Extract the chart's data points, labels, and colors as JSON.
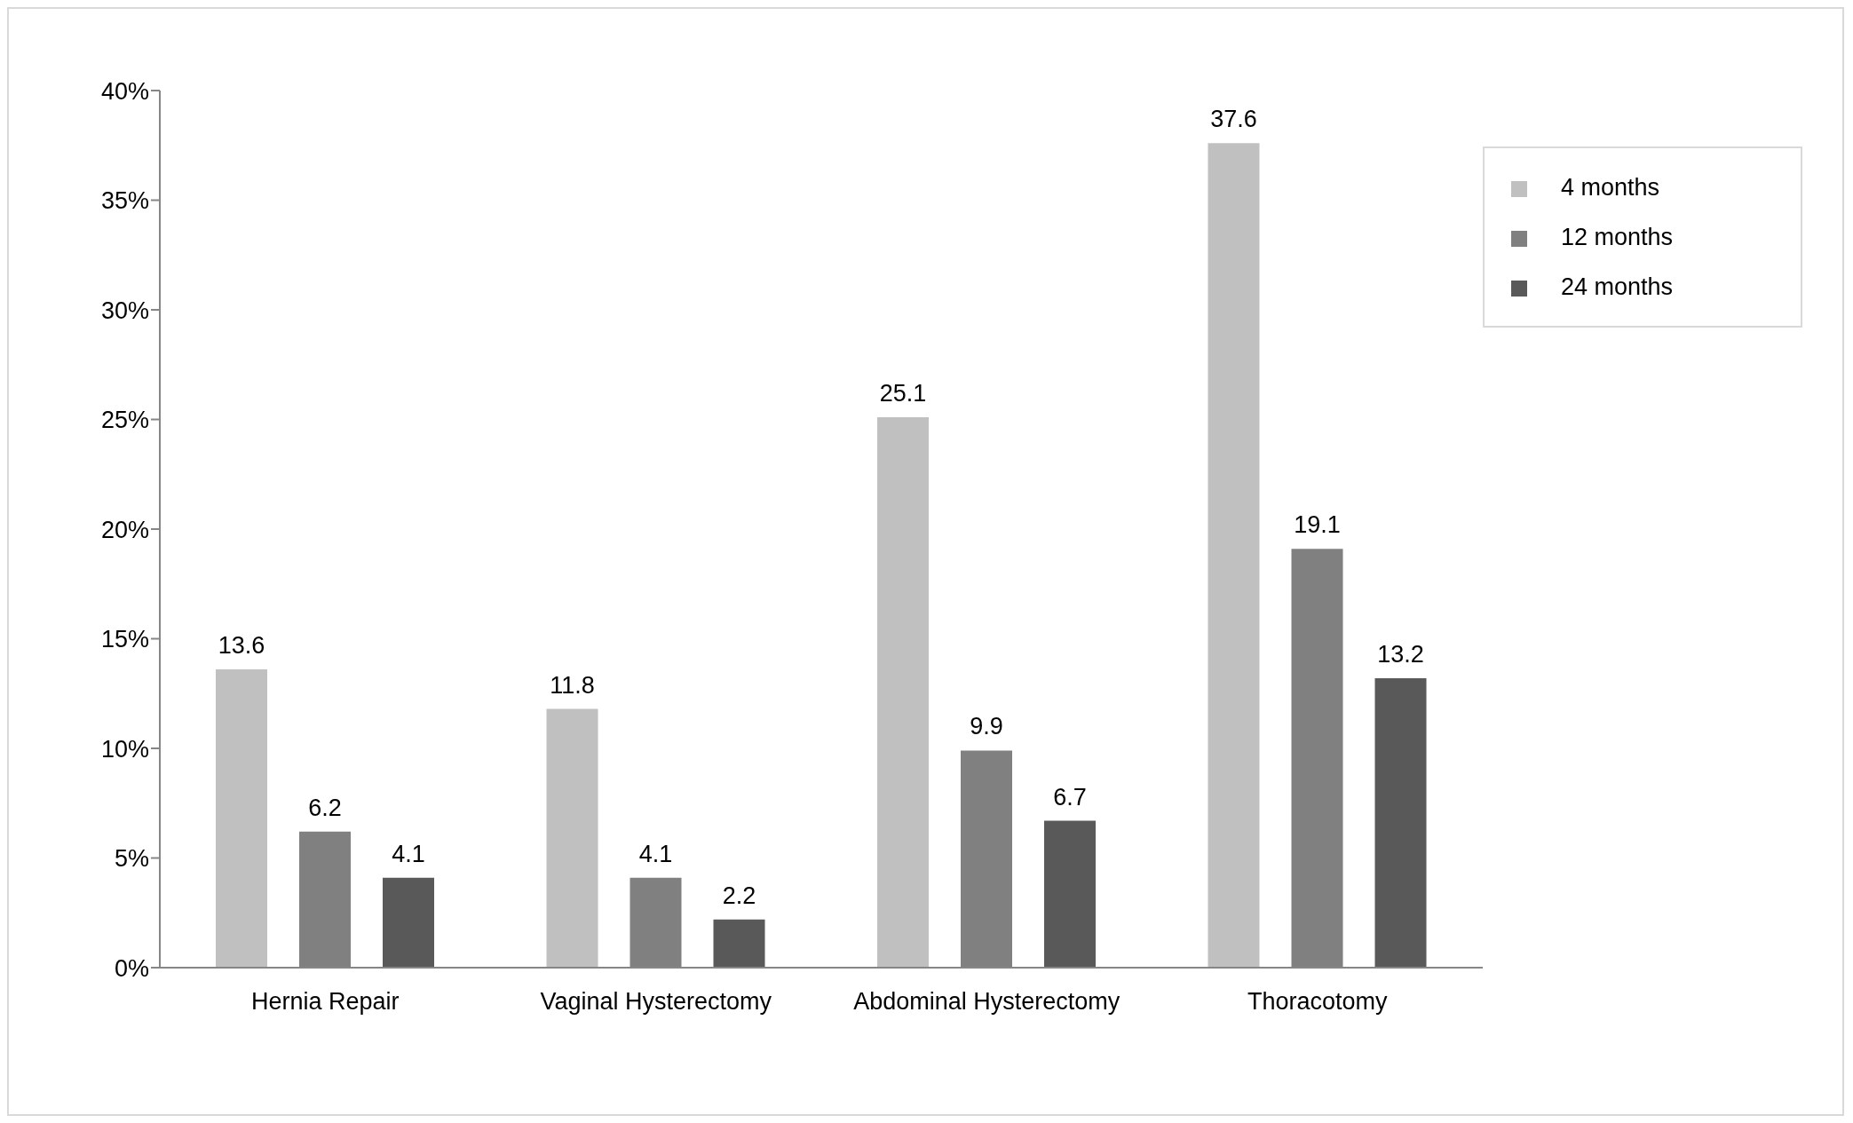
{
  "chart_data": {
    "type": "bar",
    "categories": [
      "Hernia Repair",
      "Vaginal Hysterectomy",
      "Abdominal Hysterectomy",
      "Thoracotomy"
    ],
    "series": [
      {
        "name": "4 months",
        "color": "#c0c0c0",
        "values": [
          13.6,
          11.8,
          25.1,
          37.6
        ]
      },
      {
        "name": "12 months",
        "color": "#808080",
        "values": [
          6.2,
          4.1,
          9.9,
          19.1
        ]
      },
      {
        "name": "24 months",
        "color": "#595959",
        "values": [
          4.1,
          2.2,
          6.7,
          13.2
        ]
      }
    ],
    "ylim": [
      0,
      40
    ],
    "yticks": [
      {
        "value": 0,
        "label": "0%"
      },
      {
        "value": 5,
        "label": "5%"
      },
      {
        "value": 10,
        "label": "10%"
      },
      {
        "value": 15,
        "label": "15%"
      },
      {
        "value": 20,
        "label": "20%"
      },
      {
        "value": 25,
        "label": "25%"
      },
      {
        "value": 30,
        "label": "30%"
      },
      {
        "value": 35,
        "label": "35%"
      },
      {
        "value": 40,
        "label": "40%"
      }
    ],
    "data_labels": true,
    "grid": false,
    "legend": "top right"
  }
}
